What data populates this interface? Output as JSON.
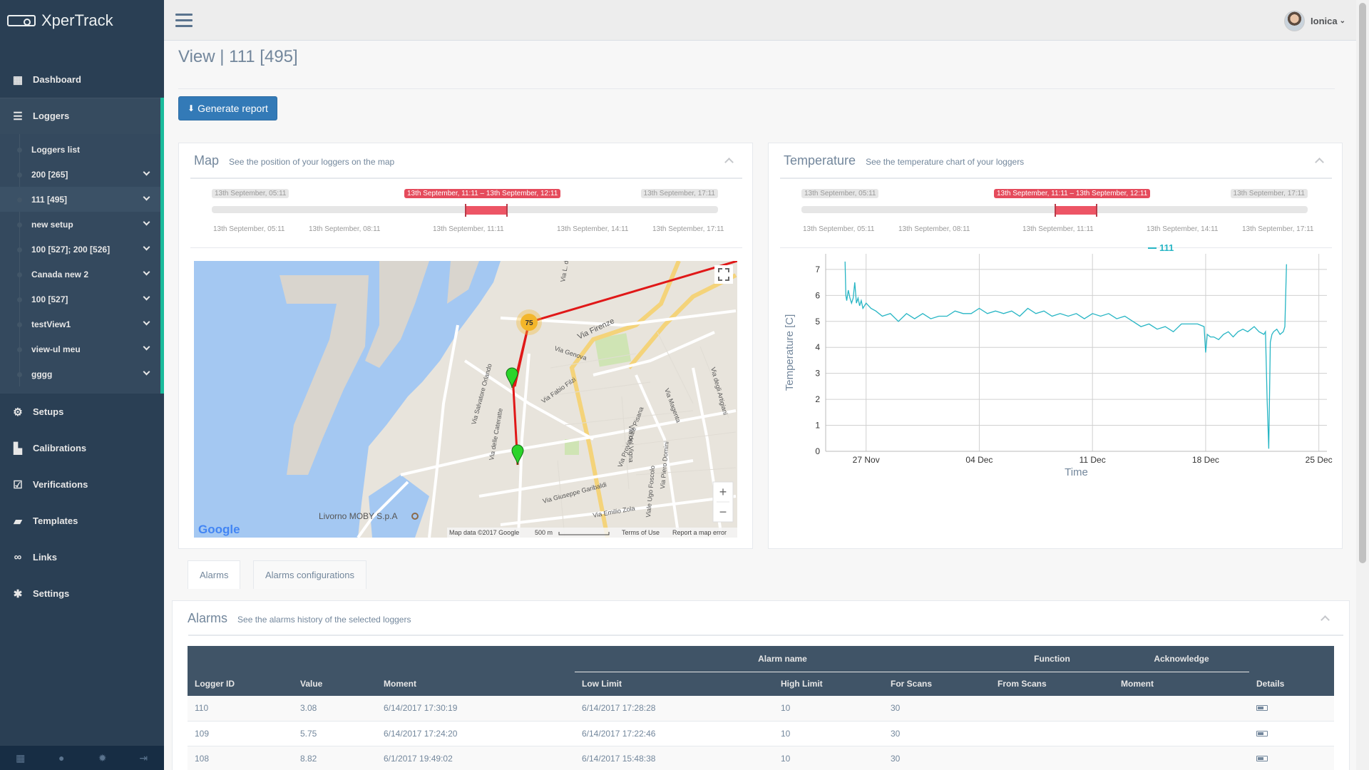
{
  "app": {
    "name": "XperTrack"
  },
  "sidebar": {
    "items": [
      {
        "label": "Dashboard",
        "icon": "grid-icon"
      },
      {
        "label": "Loggers",
        "icon": "list-icon"
      },
      {
        "label": "Setups",
        "icon": "gears-icon"
      },
      {
        "label": "Calibrations",
        "icon": "bar-chart-icon"
      },
      {
        "label": "Verifications",
        "icon": "checkbox-icon"
      },
      {
        "label": "Templates",
        "icon": "folder-open-icon"
      },
      {
        "label": "Links",
        "icon": "link-icon"
      },
      {
        "label": "Settings",
        "icon": "gear-icon"
      }
    ],
    "loggers_submenu": [
      "Loggers list",
      "200 [265]",
      "111 [495]",
      "new setup",
      "100 [527]; 200 [526]",
      "Canada new 2",
      "100 [527]",
      "testView1",
      "view-ul meu",
      "gggg"
    ],
    "footer_icons": [
      "apps-icon",
      "user-icon",
      "settings-icon",
      "logout-icon"
    ]
  },
  "header": {
    "user_name": "Ionica"
  },
  "page": {
    "title": "View | 111 [495]",
    "generate_report_label": "Generate report"
  },
  "map_panel": {
    "title": "Map",
    "subtitle": "See the position of your loggers on the map",
    "range": {
      "min_label": "13th September, 05:11",
      "max_label": "13th September, 17:11",
      "selected_label": "13th September, 11:11 – 13th September, 12:11",
      "selected_start": 0.5,
      "selected_end": 0.583,
      "ticks": [
        "13th September, 05:11",
        "13th September, 08:11",
        "13th September, 11:11",
        "13th September, 14:11",
        "13th September, 17:11"
      ]
    },
    "map": {
      "cluster_count": "75",
      "street_labels": [
        "Via Genova",
        "Via Firenze",
        "Via Fabio Filzi",
        "Via Salvatore Orlando",
        "Via delle Cateratte",
        "Via Giuseppe Garibaldi",
        "Via Provinciale Pisana",
        "Via Emilio Zola",
        "Via Piero Domini",
        "Viale Ugo Foscolo",
        "Via del Vigna",
        "Via degli Artigiani",
        "Via L. da",
        "Via Magenta"
      ],
      "poi_label": "Livorno MOBY S.p.A",
      "attribution": "Map data ©2017 Google",
      "scale": "500 m",
      "terms": "Terms of Use",
      "report": "Report a map error",
      "logo": "Google",
      "zoom_in": "+",
      "zoom_out": "−"
    }
  },
  "temperature_panel": {
    "title": "Temperature",
    "subtitle": "See the temperature chart of your loggers",
    "range": {
      "min_label": "13th September, 05:11",
      "max_label": "13th September, 17:11",
      "selected_label": "13th September, 11:11 – 13th September, 12:11",
      "selected_start": 0.5,
      "selected_end": 0.583,
      "ticks": [
        "13th September, 05:11",
        "13th September, 08:11",
        "13th September, 11:11",
        "13th September, 14:11",
        "13th September, 17:11"
      ]
    }
  },
  "chart_data": {
    "type": "line",
    "title": "",
    "xlabel": "Time",
    "ylabel": "Temperature [C]",
    "ylim": [
      0,
      7.6
    ],
    "yticks": [
      0,
      1,
      2,
      3,
      4,
      5,
      6,
      7
    ],
    "xlim_days": [
      -2.5,
      28.5
    ],
    "xticks": [
      {
        "label": "27 Nov",
        "day": 0
      },
      {
        "label": "04 Dec",
        "day": 7
      },
      {
        "label": "11 Dec",
        "day": 14
      },
      {
        "label": "18 Dec",
        "day": 21
      },
      {
        "label": "25 Dec",
        "day": 28
      }
    ],
    "color": "#26b5c4",
    "series": [
      {
        "name": "111",
        "x": [
          -1.3,
          -1.25,
          -1.2,
          -1.1,
          -1.0,
          -0.9,
          -0.8,
          -0.7,
          -0.6,
          -0.5,
          -0.4,
          -0.3,
          -0.2,
          0.0,
          0.3,
          0.6,
          1.0,
          1.5,
          2.0,
          2.5,
          3.0,
          3.5,
          4.0,
          4.5,
          5.0,
          5.5,
          6.0,
          6.5,
          7.0,
          7.5,
          8.0,
          8.5,
          9.0,
          9.5,
          10.0,
          10.5,
          11.0,
          11.5,
          12.0,
          12.5,
          13.0,
          13.5,
          14.0,
          14.5,
          15.0,
          15.5,
          16.0,
          16.5,
          17.0,
          17.5,
          18.0,
          18.5,
          19.0,
          19.5,
          20.0,
          20.5,
          20.9,
          21.0,
          21.1,
          21.3,
          21.5,
          21.8,
          22.1,
          22.4,
          22.7,
          23.0,
          23.3,
          23.6,
          24.0,
          24.3,
          24.6,
          24.7,
          24.8,
          24.9,
          25.0,
          25.1,
          25.2,
          25.4,
          25.6,
          25.8,
          25.9,
          26.0
        ],
        "values": [
          7.3,
          6.0,
          5.8,
          6.2,
          5.9,
          5.7,
          5.9,
          6.5,
          5.7,
          5.9,
          5.6,
          5.8,
          5.5,
          5.7,
          5.5,
          5.4,
          5.2,
          5.3,
          5.0,
          5.3,
          5.1,
          5.3,
          5.1,
          5.2,
          5.2,
          5.4,
          5.3,
          5.3,
          5.5,
          5.3,
          5.4,
          5.3,
          5.4,
          5.2,
          5.5,
          5.3,
          5.4,
          5.2,
          5.3,
          5.2,
          5.3,
          5.1,
          5.3,
          5.2,
          5.3,
          5.1,
          5.2,
          5.0,
          4.8,
          4.9,
          4.7,
          4.8,
          4.6,
          4.9,
          4.9,
          4.9,
          4.8,
          3.8,
          4.5,
          4.4,
          4.4,
          4.3,
          4.5,
          4.6,
          4.4,
          4.6,
          4.7,
          4.6,
          4.8,
          4.6,
          4.5,
          4.6,
          2.0,
          0.1,
          4.2,
          4.5,
          4.6,
          4.7,
          4.5,
          4.6,
          4.8,
          7.2
        ]
      }
    ],
    "legend": "top-right"
  },
  "tabs": [
    {
      "label": "Alarms"
    },
    {
      "label": "Alarms configurations"
    }
  ],
  "alarms_panel": {
    "title": "Alarms",
    "subtitle": "See the alarms history of the selected loggers",
    "group_headers": {
      "alarm_name": "Alarm name",
      "function": "Function",
      "acknowledge": "Acknowledge"
    },
    "columns": [
      "Logger ID",
      "Value",
      "Moment",
      "Low Limit",
      "High Limit",
      "For Scans",
      "From Scans",
      "Moment",
      "Details"
    ],
    "rows": [
      {
        "logger_id": "110",
        "value": "3.08",
        "moment": "6/14/2017 17:30:19",
        "low_limit": "6/14/2017 17:28:28",
        "high_limit": "10",
        "for_scans": "30",
        "from_scans": "",
        "ack_moment": ""
      },
      {
        "logger_id": "109",
        "value": "5.75",
        "moment": "6/14/2017 17:24:20",
        "low_limit": "6/14/2017 17:22:46",
        "high_limit": "10",
        "for_scans": "30",
        "from_scans": "",
        "ack_moment": ""
      },
      {
        "logger_id": "108",
        "value": "8.82",
        "moment": "6/1/2017 19:49:02",
        "low_limit": "6/14/2017 15:48:38",
        "high_limit": "10",
        "for_scans": "30",
        "from_scans": "",
        "ack_moment": ""
      }
    ]
  }
}
